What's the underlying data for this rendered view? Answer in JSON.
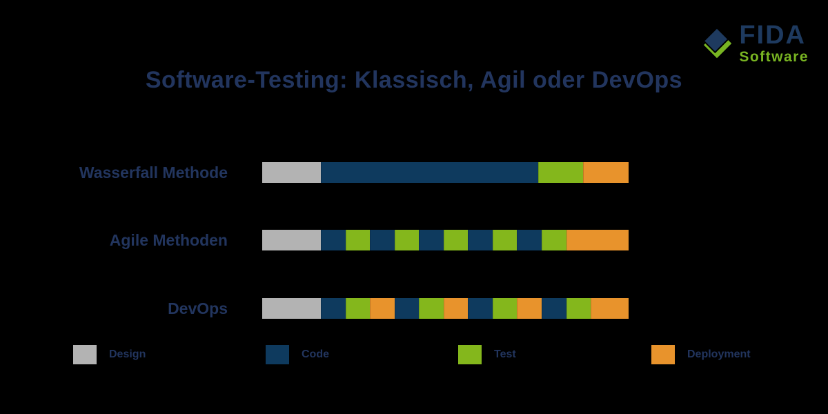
{
  "header": {
    "logo": {
      "brand": "FIDA",
      "product": "Software"
    },
    "title": "Software-Testing: Klassisch, Agil oder DevOps"
  },
  "colors": {
    "background": "#000000",
    "text_navy": "#22355e",
    "logo_navy": "#1e3a5f",
    "logo_green": "#79b522",
    "design_gray": "#b3b3b3",
    "code_navy": "#0e3a5e",
    "test_green": "#84b71c",
    "deployment_orange": "#e8932c"
  },
  "chart_data": {
    "type": "bar",
    "subtype": "horizontal-stacked-phase-timeline",
    "title": "Software-Testing: Klassisch, Agil oder DevOps",
    "xlabel": "",
    "ylabel": "",
    "axis_visible": false,
    "grid": false,
    "legend_position": "bottom",
    "categories": [
      "Wasserfall Methode",
      "Agile Methoden",
      "DevOps"
    ],
    "phases": [
      "Design",
      "Code",
      "Test",
      "Deployment"
    ],
    "phase_colors": {
      "design": "#b3b3b3",
      "code": "#0e3a5e",
      "test": "#84b71c",
      "deployment": "#e8932c"
    },
    "rows": [
      {
        "label": "Wasserfall Methode",
        "segments": [
          {
            "phase": "design",
            "pct": 16.0
          },
          {
            "phase": "code",
            "pct": 59.3
          },
          {
            "phase": "test",
            "pct": 12.3
          },
          {
            "phase": "deployment",
            "pct": 12.4
          }
        ]
      },
      {
        "label": "Agile Methoden",
        "segments": [
          {
            "phase": "design",
            "pct": 16.0
          },
          {
            "phase": "code",
            "pct": 6.7
          },
          {
            "phase": "test",
            "pct": 6.7
          },
          {
            "phase": "code",
            "pct": 6.7
          },
          {
            "phase": "test",
            "pct": 6.7
          },
          {
            "phase": "code",
            "pct": 6.7
          },
          {
            "phase": "test",
            "pct": 6.7
          },
          {
            "phase": "code",
            "pct": 6.7
          },
          {
            "phase": "test",
            "pct": 6.7
          },
          {
            "phase": "code",
            "pct": 6.7
          },
          {
            "phase": "test",
            "pct": 6.7
          },
          {
            "phase": "deployment",
            "pct": 17.0
          }
        ]
      },
      {
        "label": "DevOps",
        "segments": [
          {
            "phase": "design",
            "pct": 16.0
          },
          {
            "phase": "code",
            "pct": 6.7
          },
          {
            "phase": "test",
            "pct": 6.7
          },
          {
            "phase": "deployment",
            "pct": 6.7
          },
          {
            "phase": "code",
            "pct": 6.7
          },
          {
            "phase": "test",
            "pct": 6.7
          },
          {
            "phase": "deployment",
            "pct": 6.7
          },
          {
            "phase": "code",
            "pct": 6.7
          },
          {
            "phase": "test",
            "pct": 6.7
          },
          {
            "phase": "deployment",
            "pct": 6.7
          },
          {
            "phase": "code",
            "pct": 6.7
          },
          {
            "phase": "test",
            "pct": 6.7
          },
          {
            "phase": "deployment",
            "pct": 10.3
          }
        ]
      }
    ],
    "legend": [
      {
        "label": "Design",
        "phase": "design"
      },
      {
        "label": "Code",
        "phase": "code"
      },
      {
        "label": "Test",
        "phase": "test"
      },
      {
        "label": "Deployment",
        "phase": "deployment"
      }
    ]
  }
}
